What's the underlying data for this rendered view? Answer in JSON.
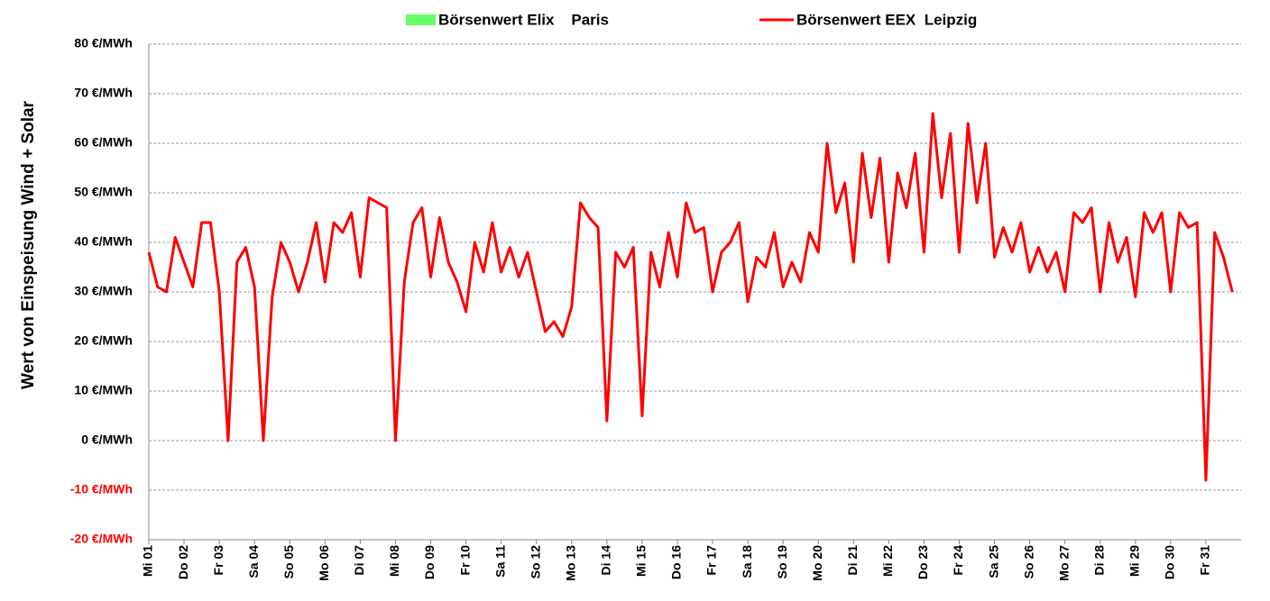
{
  "chart_data": {
    "type": "line",
    "ylabel": "Wert von Einspeisung Wind + Solar",
    "categories": [
      "Mi 01",
      null,
      null,
      null,
      "Do 02",
      null,
      null,
      null,
      "Fr 03",
      null,
      null,
      null,
      "Sa 04",
      null,
      null,
      null,
      "So 05",
      null,
      null,
      null,
      "Mo 06",
      null,
      null,
      null,
      "Di 07",
      null,
      null,
      null,
      "Mi 08",
      null,
      null,
      null,
      "Do 09",
      null,
      null,
      null,
      "Fr 10",
      null,
      null,
      null,
      "Sa 11",
      null,
      null,
      null,
      "So 12",
      null,
      null,
      null,
      "Mo 13",
      null,
      null,
      null,
      "Di 14",
      null,
      null,
      null,
      "Mi 15",
      null,
      null,
      null,
      "Do 16",
      null,
      null,
      null,
      "Fr 17",
      null,
      null,
      null,
      "Sa 18",
      null,
      null,
      null,
      "So 19",
      null,
      null,
      null,
      "Mo 20",
      null,
      null,
      null,
      "Di 21",
      null,
      null,
      null,
      "Mi 22",
      null,
      null,
      null,
      "Do 23",
      null,
      null,
      null,
      "Fr 24",
      null,
      null,
      null,
      "Sa 25",
      null,
      null,
      null,
      "So 26",
      null,
      null,
      null,
      "Mo 27",
      null,
      null,
      null,
      "Di 28",
      null,
      null,
      null,
      "Mi 29",
      null,
      null,
      null,
      "Do 30",
      null,
      null,
      null,
      "Fr 31",
      null,
      null,
      null
    ],
    "series": [
      {
        "name": "Börsenwert Elix    Paris",
        "color": "#66ff66",
        "values": [
          null,
          null,
          null,
          null,
          null,
          null,
          null,
          null,
          null,
          null,
          null,
          null,
          null,
          null,
          null,
          null,
          null,
          null,
          null,
          null,
          null,
          null,
          null,
          null,
          null,
          null,
          null,
          null,
          null,
          null,
          null,
          null,
          null,
          null,
          null,
          null,
          null,
          null,
          null,
          null,
          null,
          null,
          null,
          null,
          null,
          null,
          null,
          null,
          null,
          null,
          null,
          null,
          null,
          null,
          null,
          null,
          null,
          null,
          null,
          null,
          null,
          null,
          null,
          null,
          null,
          null,
          null,
          null,
          null,
          null,
          null,
          null,
          null,
          null,
          null,
          null,
          null,
          null,
          null,
          null,
          null,
          null,
          null,
          null,
          null,
          null,
          null,
          null,
          null,
          null,
          null,
          null,
          null,
          null,
          null,
          null,
          null,
          null,
          null,
          null,
          null,
          null,
          null,
          null,
          null,
          null,
          null,
          null,
          null,
          null,
          null,
          null,
          null,
          null,
          null,
          null,
          null,
          null,
          null,
          null,
          null,
          null,
          null,
          null
        ]
      },
      {
        "name": "Börsenwert EEX  Leipzig",
        "color": "#ff0000",
        "values": [
          38,
          31,
          30,
          41,
          36,
          31,
          44,
          44,
          30,
          0,
          36,
          39,
          31,
          0,
          29,
          40,
          36,
          30,
          36,
          44,
          32,
          44,
          42,
          46,
          33,
          49,
          48,
          47,
          0,
          32,
          44,
          47,
          33,
          45,
          36,
          32,
          26,
          40,
          34,
          44,
          34,
          39,
          33,
          38,
          30,
          22,
          24,
          21,
          27,
          48,
          45,
          43,
          4,
          38,
          35,
          39,
          5,
          38,
          31,
          42,
          33,
          48,
          42,
          43,
          30,
          38,
          40,
          44,
          28,
          37,
          35,
          42,
          31,
          36,
          32,
          42,
          38,
          60,
          46,
          52,
          36,
          58,
          45,
          57,
          36,
          54,
          47,
          58,
          38,
          66,
          49,
          62,
          38,
          64,
          48,
          60,
          37,
          43,
          38,
          44,
          34,
          39,
          34,
          38,
          30,
          46,
          44,
          47,
          30,
          44,
          36,
          41,
          29,
          46,
          42,
          46,
          30,
          46,
          43,
          44,
          -8,
          42,
          37,
          30
        ]
      }
    ],
    "ylim": [
      -20,
      80
    ],
    "yticks": [
      {
        "value": -20,
        "label": "-20 €/MWh"
      },
      {
        "value": -10,
        "label": "-10 €/MWh"
      },
      {
        "value": 0,
        "label": "0 €/MWh"
      },
      {
        "value": 10,
        "label": "10 €/MWh"
      },
      {
        "value": 20,
        "label": "20 €/MWh"
      },
      {
        "value": 30,
        "label": "30 €/MWh"
      },
      {
        "value": 40,
        "label": "40 €/MWh"
      },
      {
        "value": 50,
        "label": "50 €/MWh"
      },
      {
        "value": 60,
        "label": "60 €/MWh"
      },
      {
        "value": 70,
        "label": "70 €/MWh"
      },
      {
        "value": 80,
        "label": "80 €/MWh"
      }
    ],
    "negative_tick_color": "#ff0000",
    "grid": true
  }
}
